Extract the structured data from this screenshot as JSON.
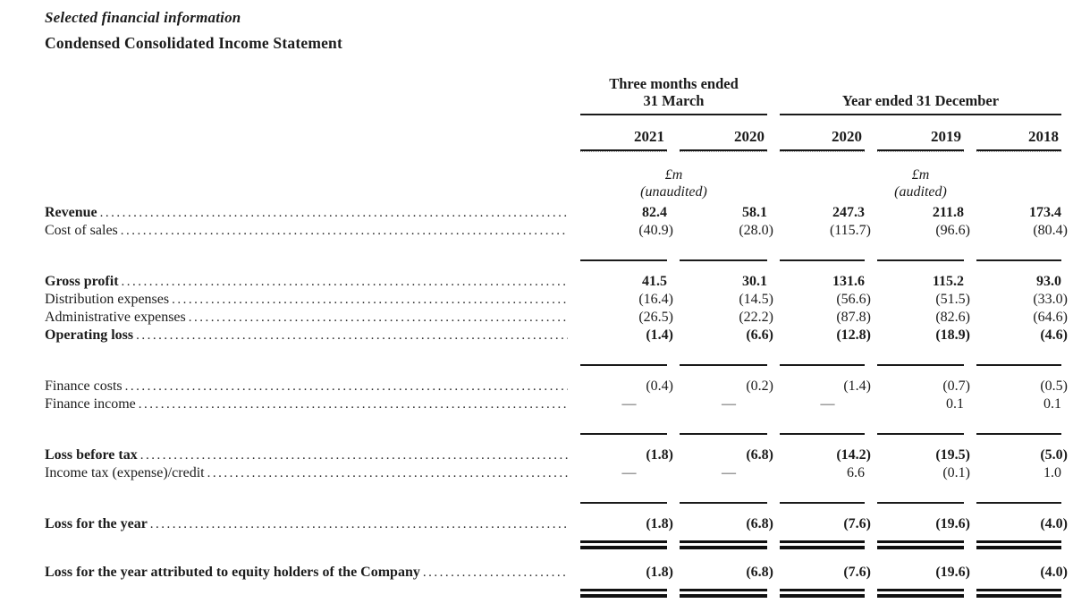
{
  "page": {
    "section_title": "Selected financial information",
    "table_title": "Condensed Consolidated Income Statement"
  },
  "table": {
    "groups": [
      {
        "line1": "Three months ended",
        "line2": "31 March"
      },
      {
        "line1": "Year ended 31 December"
      }
    ],
    "years": [
      "2021",
      "2020",
      "2020",
      "2019",
      "2018"
    ],
    "unit_notes": [
      {
        "currency": "£m",
        "note": "(unaudited)"
      },
      {
        "currency": "£m",
        "note": "(audited)"
      }
    ],
    "rows": [
      {
        "type": "data",
        "label": "Revenue",
        "bold": true,
        "values": [
          "82.4",
          "58.1",
          "247.3",
          "211.8",
          "173.4"
        ]
      },
      {
        "type": "data",
        "label": "Cost of sales",
        "bold": false,
        "values": [
          "(40.9)",
          "(28.0)",
          "(115.7)",
          "(96.6)",
          "(80.4)"
        ]
      },
      {
        "type": "rule"
      },
      {
        "type": "data",
        "label": "Gross profit",
        "bold": true,
        "values": [
          "41.5",
          "30.1",
          "131.6",
          "115.2",
          "93.0"
        ]
      },
      {
        "type": "data",
        "label": "Distribution expenses",
        "bold": false,
        "values": [
          "(16.4)",
          "(14.5)",
          "(56.6)",
          "(51.5)",
          "(33.0)"
        ]
      },
      {
        "type": "data",
        "label": "Administrative expenses",
        "bold": false,
        "values": [
          "(26.5)",
          "(22.2)",
          "(87.8)",
          "(82.6)",
          "(64.6)"
        ]
      },
      {
        "type": "data",
        "label": "Operating loss",
        "bold": true,
        "values": [
          "(1.4)",
          "(6.6)",
          "(12.8)",
          "(18.9)",
          "(4.6)"
        ]
      },
      {
        "type": "rule"
      },
      {
        "type": "data",
        "label": "Finance costs",
        "bold": false,
        "values": [
          "(0.4)",
          "(0.2)",
          "(1.4)",
          "(0.7)",
          "(0.5)"
        ]
      },
      {
        "type": "data",
        "label": "Finance income",
        "bold": false,
        "values": [
          "—",
          "—",
          "—",
          "0.1",
          "0.1"
        ]
      },
      {
        "type": "rule"
      },
      {
        "type": "data",
        "label": "Loss before tax",
        "bold": true,
        "values": [
          "(1.8)",
          "(6.8)",
          "(14.2)",
          "(19.5)",
          "(5.0)"
        ]
      },
      {
        "type": "data",
        "label": "Income tax (expense)/credit",
        "bold": false,
        "values": [
          "—",
          "—",
          "6.6",
          "(0.1)",
          "1.0"
        ]
      },
      {
        "type": "rule"
      },
      {
        "type": "data",
        "label": "Loss for the year",
        "bold": true,
        "values": [
          "(1.8)",
          "(6.8)",
          "(7.6)",
          "(19.6)",
          "(4.0)"
        ]
      },
      {
        "type": "double-rule"
      },
      {
        "type": "data",
        "label": "Loss for the year attributed to equity holders of the Company",
        "bold": true,
        "values": [
          "(1.8)",
          "(6.8)",
          "(7.6)",
          "(19.6)",
          "(4.0)"
        ]
      },
      {
        "type": "double-rule"
      }
    ]
  }
}
